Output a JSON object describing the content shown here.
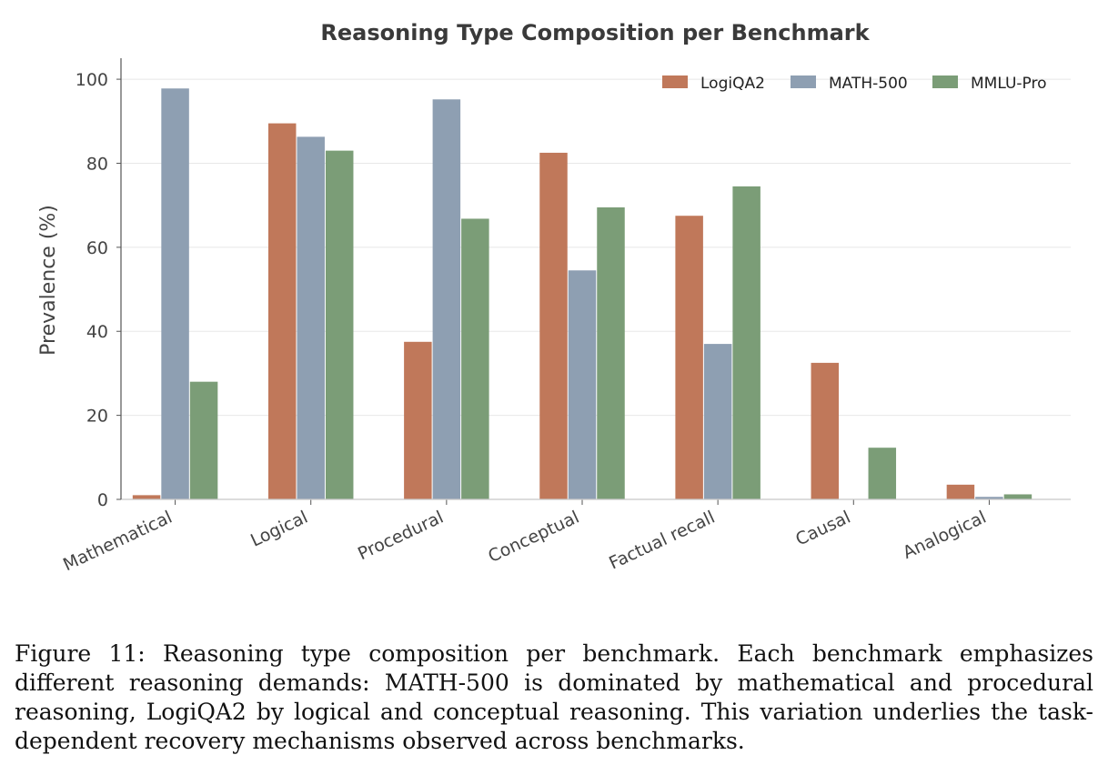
{
  "chart_data": {
    "type": "bar",
    "title": "Reasoning Type Composition per Benchmark",
    "xlabel": "",
    "ylabel": "Prevalence (%)",
    "ylim": [
      0,
      105
    ],
    "yticks": [
      0,
      20,
      40,
      60,
      80,
      100
    ],
    "grid": "horizontal",
    "legend_position": "top-right",
    "categories": [
      "Mathematical",
      "Logical",
      "Procedural",
      "Conceptual",
      "Factual recall",
      "Causal",
      "Analogical"
    ],
    "series": [
      {
        "name": "LogiQA2",
        "color": "#c0785a",
        "values": [
          1.0,
          89.5,
          37.5,
          82.5,
          67.5,
          32.5,
          3.5
        ]
      },
      {
        "name": "MATH-500",
        "color": "#8e9fb2",
        "values": [
          97.8,
          86.3,
          95.2,
          54.5,
          37.0,
          0.0,
          0.6
        ]
      },
      {
        "name": "MMLU-Pro",
        "color": "#7b9d77",
        "values": [
          28.0,
          83.0,
          66.8,
          69.5,
          74.5,
          12.3,
          1.2
        ]
      }
    ]
  },
  "caption": {
    "label": "Figure 11:",
    "text": "Reasoning type composition per benchmark. Each benchmark emphasizes different reasoning demands: MATH-500 is dominated by mathematical and procedural reasoning, LogiQA2 by logical and conceptual reasoning. This variation underlies the task-dependent recovery mechanisms observed across benchmarks."
  }
}
